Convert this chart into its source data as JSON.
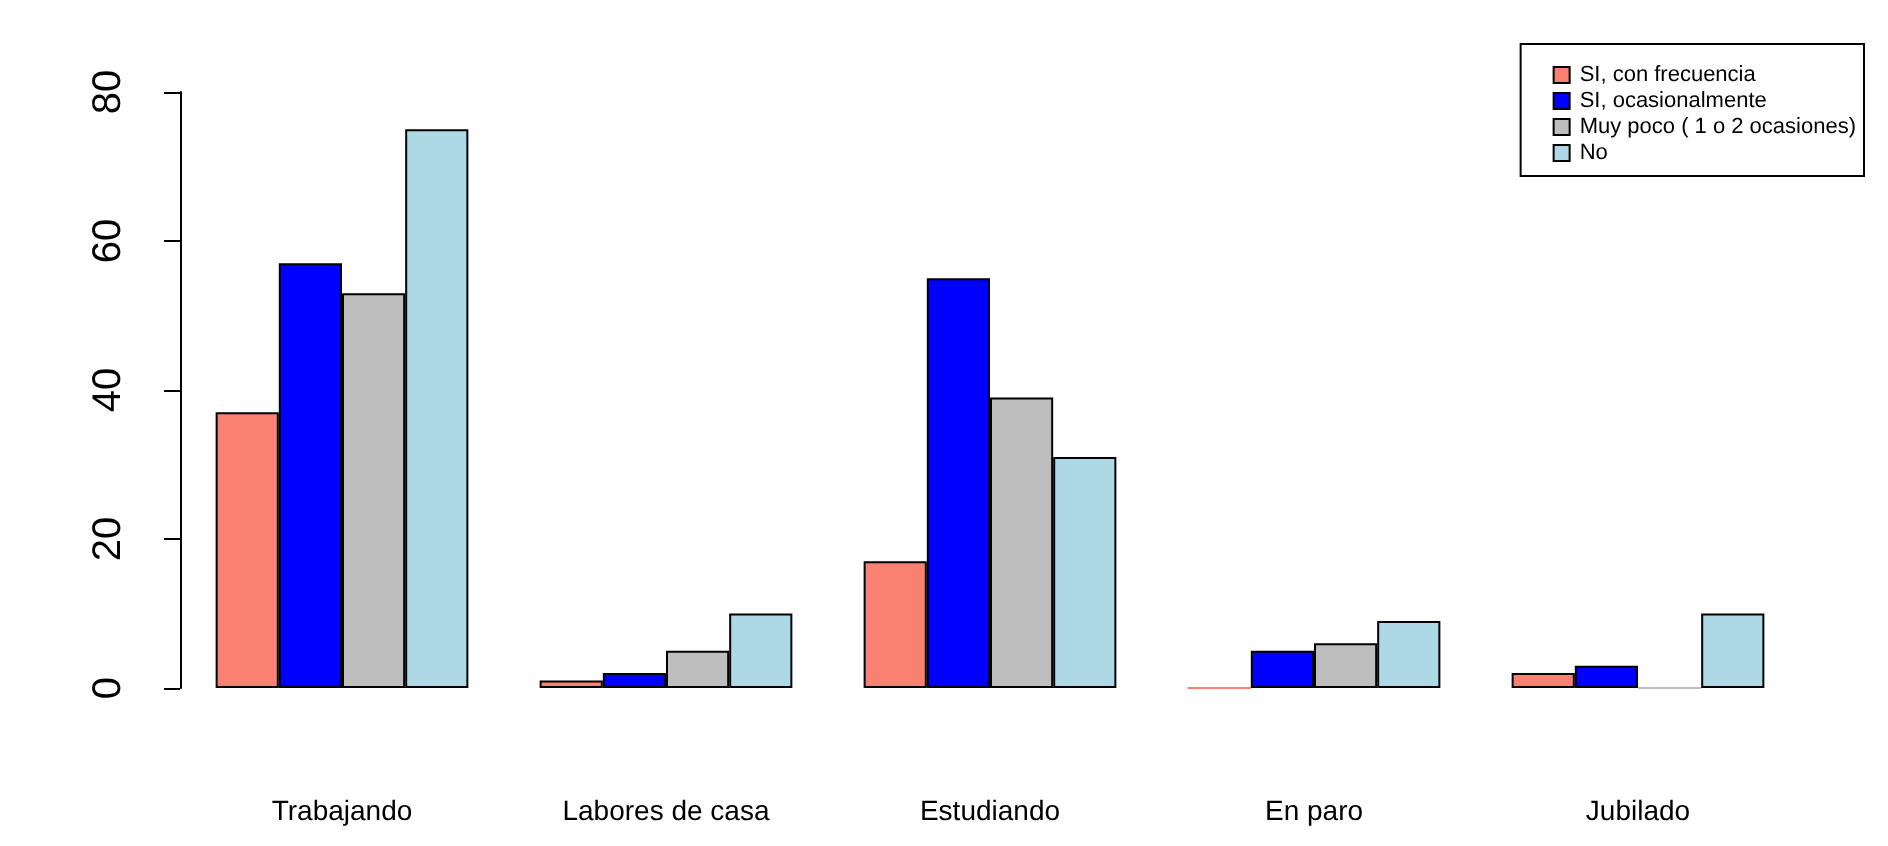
{
  "chart_data": {
    "type": "bar",
    "categories": [
      "Trabajando",
      "Labores de casa",
      "Estudiando",
      "En paro",
      "Jubilado"
    ],
    "series": [
      {
        "name": "SI, con frecuencia",
        "color": "#fa8072",
        "values": [
          37,
          1,
          17,
          0,
          2
        ]
      },
      {
        "name": "SI, ocasionalmente",
        "color": "#0000ff",
        "values": [
          57,
          2,
          55,
          5,
          3
        ]
      },
      {
        "name": "Muy poco ( 1 o 2 ocasiones)",
        "color": "#bebebe",
        "values": [
          53,
          5,
          39,
          6,
          0
        ]
      },
      {
        "name": "No",
        "color": "#add8e6",
        "values": [
          75,
          10,
          31,
          9,
          10
        ]
      }
    ],
    "ylim": [
      0,
      80
    ],
    "yticks": [
      0,
      20,
      40,
      60,
      80
    ],
    "grid": false,
    "legend": "top right"
  }
}
